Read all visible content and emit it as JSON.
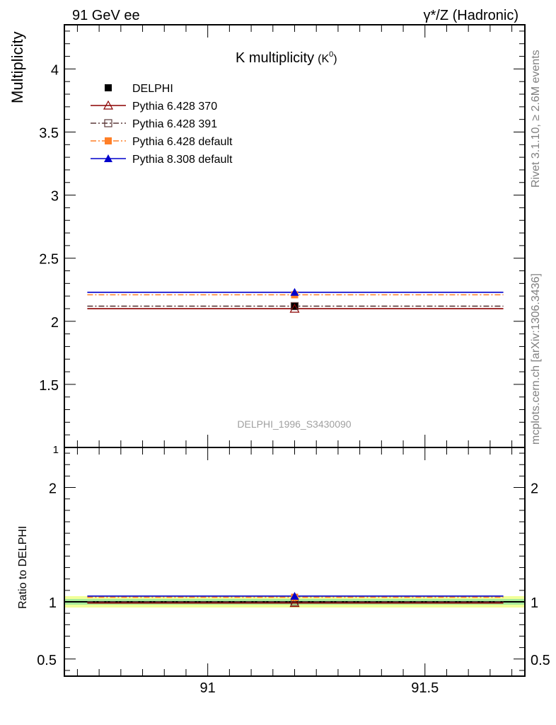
{
  "header": {
    "left": "91 GeV ee",
    "right": "γ*/Z (Hadronic)"
  },
  "side_labels": {
    "rivet": "Rivet 3.1.10, ≥ 2.6M events",
    "mcplots": "mcplots.cern.ch [arXiv:1306.3436]"
  },
  "chart_data": [
    {
      "type": "line",
      "title": "K multiplicity",
      "title_sub": "(K",
      "title_sup": "0",
      "title_close": ")",
      "ylabel": "Multiplicity",
      "analysis_id": "DELPHI_1996_S3430090",
      "xlim": [
        90.67,
        91.73
      ],
      "ylim": [
        1.0,
        4.35
      ],
      "yticks": [
        1,
        1.5,
        2,
        2.5,
        3,
        3.5,
        4
      ],
      "ytick_labels": [
        "1",
        "1.5",
        "2",
        "2.5",
        "3",
        "3.5",
        "4"
      ],
      "x_bin": [
        90.7,
        91.7
      ],
      "x_point": 91.2,
      "legend_position": "top-left",
      "series": [
        {
          "name": "DELPHI",
          "value": 2.12,
          "color": "#000000",
          "style": "data",
          "marker": "filled-square"
        },
        {
          "name": "Pythia 6.428 370",
          "value": 2.1,
          "color": "#8b0000",
          "style": "solid",
          "marker": "open-triangle"
        },
        {
          "name": "Pythia 6.428 391",
          "value": 2.12,
          "color": "#5c3a3a",
          "style": "dashdot",
          "marker": "open-square"
        },
        {
          "name": "Pythia 6.428 default",
          "value": 2.21,
          "color": "#ff7f27",
          "style": "dashdot",
          "marker": "filled-square"
        },
        {
          "name": "Pythia 8.308 default",
          "value": 2.23,
          "color": "#0000cc",
          "style": "solid",
          "marker": "filled-triangle"
        }
      ]
    },
    {
      "type": "line",
      "ylabel": "Ratio to DELPHI",
      "xlim": [
        90.67,
        91.73
      ],
      "ylim": [
        0.35,
        2.35
      ],
      "yticks": [
        0.5,
        1,
        2
      ],
      "ytick_labels": [
        "0.5",
        "1",
        "2"
      ],
      "xticks": [
        91,
        91.5
      ],
      "xtick_labels": [
        "91",
        "91.5"
      ],
      "bands": [
        {
          "lo": 0.95,
          "hi": 1.05,
          "color": "#f2ff99"
        },
        {
          "lo": 0.975,
          "hi": 1.025,
          "color": "#a6ea9a"
        }
      ],
      "series": [
        {
          "name": "Pythia 6.428 370",
          "value": 0.99,
          "color": "#8b0000",
          "style": "solid",
          "marker": "open-triangle"
        },
        {
          "name": "Pythia 6.428 391",
          "value": 1.0,
          "color": "#5c3a3a",
          "style": "dashdot",
          "marker": "open-square"
        },
        {
          "name": "Pythia 6.428 default",
          "value": 1.04,
          "color": "#ff7f27",
          "style": "dashdot",
          "marker": "filled-square"
        },
        {
          "name": "Pythia 8.308 default",
          "value": 1.05,
          "color": "#0000cc",
          "style": "solid",
          "marker": "filled-triangle"
        }
      ]
    }
  ]
}
